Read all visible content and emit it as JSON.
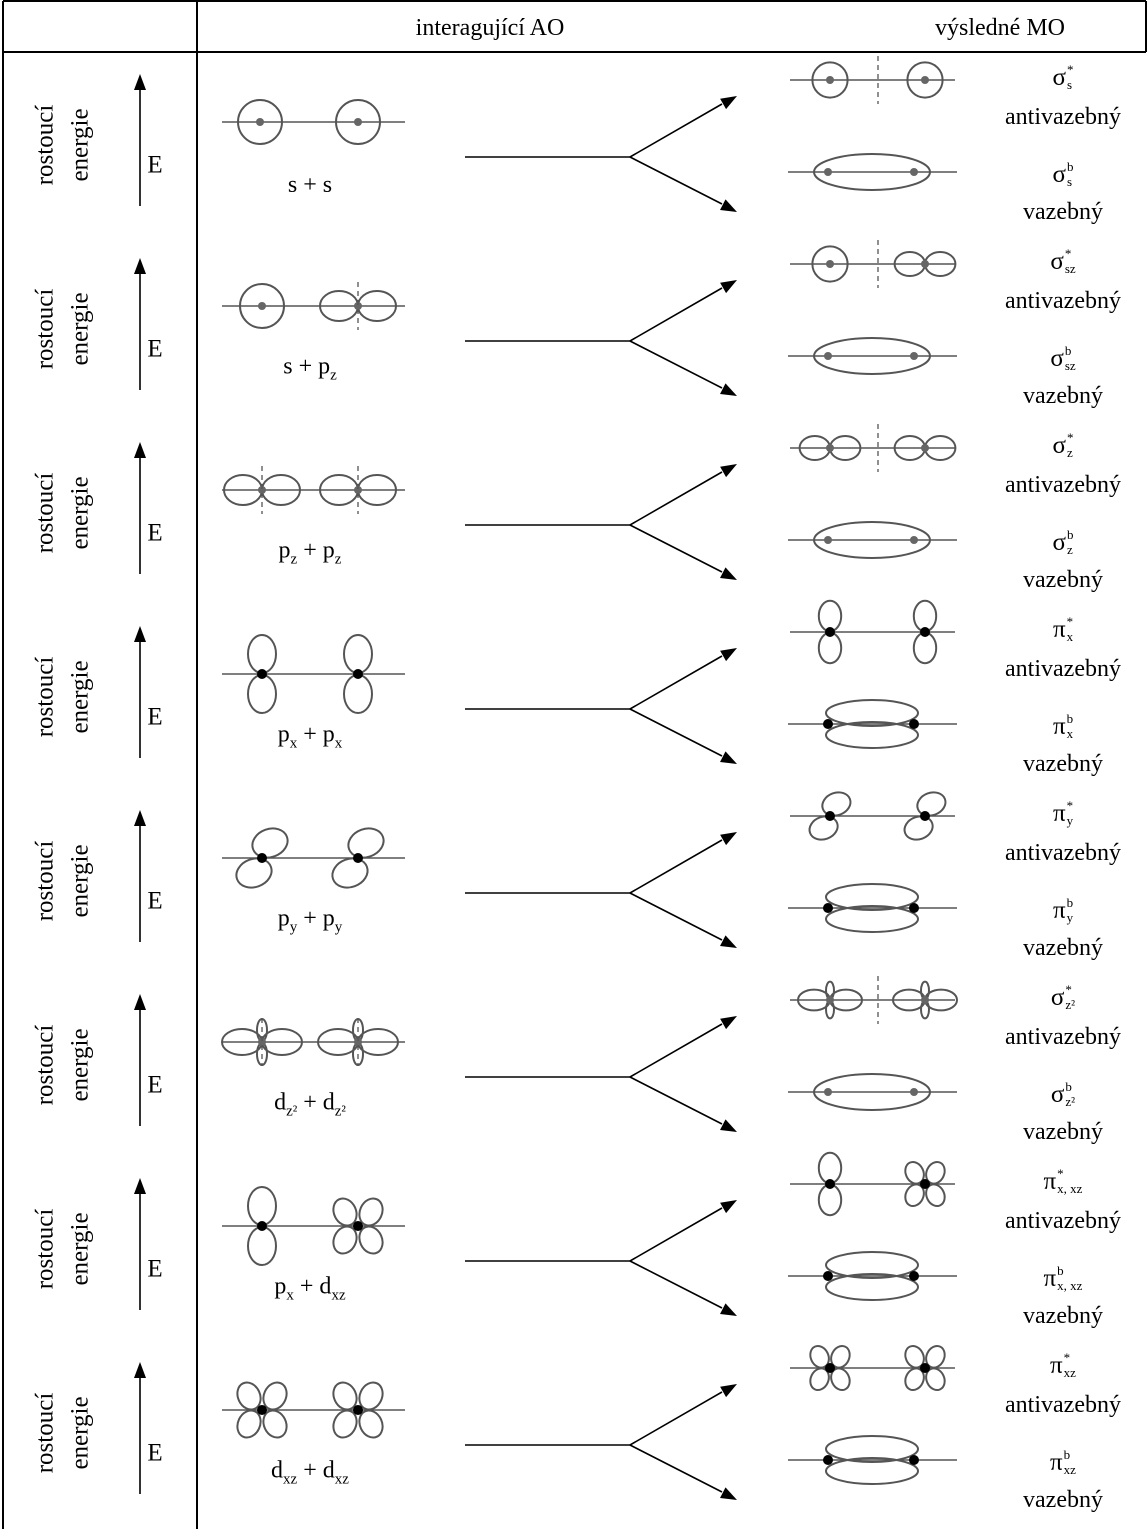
{
  "header": {
    "col2": "interagující AO",
    "col3": "výsledné MO"
  },
  "rows": [
    {
      "axis": {
        "line1": "rostoucí",
        "line2": "energie",
        "arrow": "E"
      },
      "combination": [
        {
          "text": "s + s"
        }
      ],
      "mo_top": {
        "base": "σ",
        "sup": "*",
        "sub": "s"
      },
      "mo_top_label": "antivazebný",
      "mo_bottom": {
        "base": "σ",
        "sup": "b",
        "sub": "s"
      },
      "mo_bottom_label": "vazebný"
    },
    {
      "axis": {
        "line1": "rostoucí",
        "line2": "energie",
        "arrow": "E"
      },
      "combination": [
        {
          "text": "s + p"
        },
        {
          "sub": "z"
        }
      ],
      "mo_top": {
        "base": "σ",
        "sup": "*",
        "sub": "sz"
      },
      "mo_top_label": "antivazebný",
      "mo_bottom": {
        "base": "σ",
        "sup": "b",
        "sub": "sz"
      },
      "mo_bottom_label": "vazebný"
    },
    {
      "axis": {
        "line1": "rostoucí",
        "line2": "energie",
        "arrow": "E"
      },
      "combination": [
        {
          "text": "p"
        },
        {
          "sub": "z"
        },
        {
          "text": " + p"
        },
        {
          "sub": "z"
        }
      ],
      "mo_top": {
        "base": "σ",
        "sup": "*",
        "sub": "z"
      },
      "mo_top_label": "antivazebný",
      "mo_bottom": {
        "base": "σ",
        "sup": "b",
        "sub": "z"
      },
      "mo_bottom_label": "vazebný"
    },
    {
      "axis": {
        "line1": "rostoucí",
        "line2": "energie",
        "arrow": "E"
      },
      "combination": [
        {
          "text": "p"
        },
        {
          "sub": "x"
        },
        {
          "text": " + p"
        },
        {
          "sub": "x"
        }
      ],
      "mo_top": {
        "base": "π",
        "sup": "*",
        "sub": "x"
      },
      "mo_top_label": "antivazebný",
      "mo_bottom": {
        "base": "π",
        "sup": "b",
        "sub": "x"
      },
      "mo_bottom_label": "vazebný"
    },
    {
      "axis": {
        "line1": "rostoucí",
        "line2": "energie",
        "arrow": "E"
      },
      "combination": [
        {
          "text": "p"
        },
        {
          "sub": "y"
        },
        {
          "text": " + p"
        },
        {
          "sub": "y"
        }
      ],
      "mo_top": {
        "base": "π",
        "sup": "*",
        "sub": "y"
      },
      "mo_top_label": "antivazebný",
      "mo_bottom": {
        "base": "π",
        "sup": "b",
        "sub": "y"
      },
      "mo_bottom_label": "vazebný"
    },
    {
      "axis": {
        "line1": "rostoucí",
        "line2": "energie",
        "arrow": "E"
      },
      "combination": [
        {
          "text": "d"
        },
        {
          "sub": "z²"
        },
        {
          "text": " + d"
        },
        {
          "sub": "z²"
        }
      ],
      "mo_top": {
        "base": "σ",
        "sup": "*",
        "sub": "z²"
      },
      "mo_top_label": "antivazebný",
      "mo_bottom": {
        "base": "σ",
        "sup": "b",
        "sub": "z²"
      },
      "mo_bottom_label": "vazebný"
    },
    {
      "axis": {
        "line1": "rostoucí",
        "line2": "energie",
        "arrow": "E"
      },
      "combination": [
        {
          "text": "p"
        },
        {
          "sub": "x"
        },
        {
          "text": " + d"
        },
        {
          "sub": "xz"
        }
      ],
      "mo_top": {
        "base": "π",
        "sup": "*",
        "sub": "x, xz"
      },
      "mo_top_label": "antivazebný",
      "mo_bottom": {
        "base": "π",
        "sup": "b",
        "sub": "x, xz"
      },
      "mo_bottom_label": "vazebný"
    },
    {
      "axis": {
        "line1": "rostoucí",
        "line2": "energie",
        "arrow": "E"
      },
      "combination": [
        {
          "text": "d"
        },
        {
          "sub": "xz"
        },
        {
          "text": " + d"
        },
        {
          "sub": "xz"
        }
      ],
      "mo_top": {
        "base": "π",
        "sup": "*",
        "sub": "xz"
      },
      "mo_top_label": "antivazebný",
      "mo_bottom": {
        "base": "π",
        "sup": "b",
        "sub": "xz"
      },
      "mo_bottom_label": "vazebný"
    }
  ]
}
